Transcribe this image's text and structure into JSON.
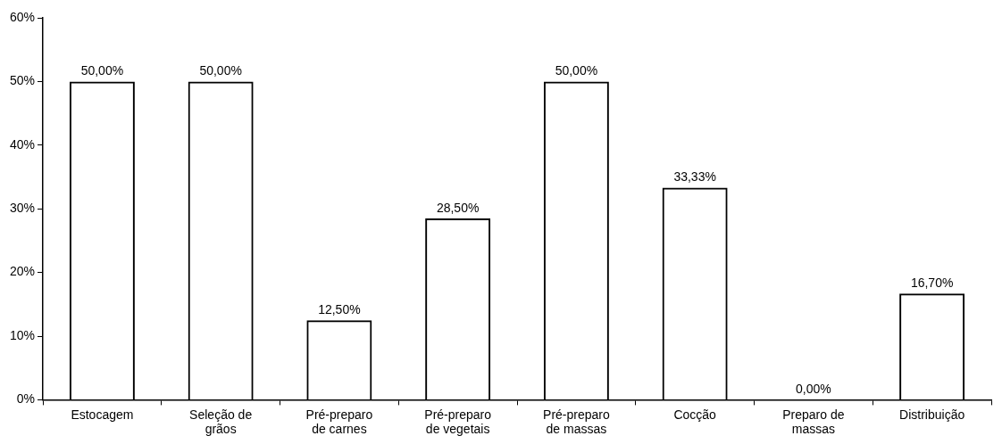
{
  "chart_data": {
    "type": "bar",
    "categories": [
      "Estocagem",
      "Seleção de grãos",
      "Pré-preparo de carnes",
      "Pré-preparo de vegetais",
      "Pré-preparo de massas",
      "Cocção",
      "Preparo de massas",
      "Distribuição"
    ],
    "values": [
      50,
      50,
      12.5,
      28.5,
      50,
      33.33,
      0,
      16.7
    ],
    "value_labels": [
      "50,00%",
      "50,00%",
      "12,50%",
      "28,50%",
      "50,00%",
      "33,33%",
      "0,00%",
      "16,70%"
    ],
    "color": "#000000",
    "ylim": [
      0,
      60
    ],
    "yticks": [
      {
        "value": 0,
        "label": "0%"
      },
      {
        "value": 10,
        "label": "10%"
      },
      {
        "value": 20,
        "label": "20%"
      },
      {
        "value": 30,
        "label": "30%"
      },
      {
        "value": 40,
        "label": "40%"
      },
      {
        "value": 50,
        "label": "50%"
      },
      {
        "value": 60,
        "label": "60%"
      }
    ],
    "grid": false,
    "legend": false
  }
}
